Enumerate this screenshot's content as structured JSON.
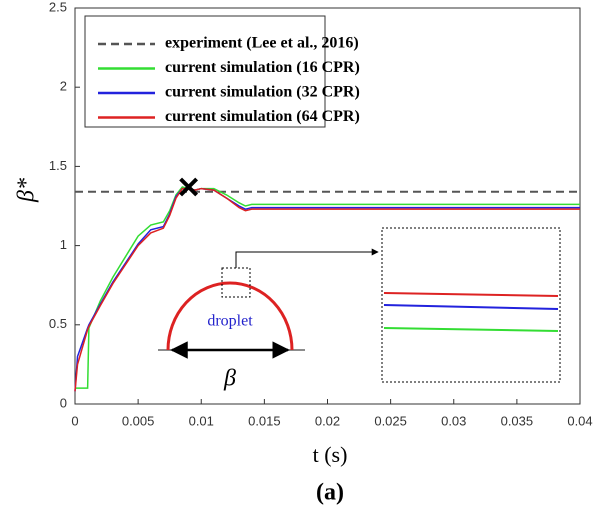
{
  "chart_data": {
    "type": "line",
    "xlabel": "t (s)",
    "ylabel": "β*",
    "caption": "(a)",
    "x": [
      0,
      0.0002,
      0.001,
      0.0011,
      0.002,
      0.003,
      0.004,
      0.005,
      0.006,
      0.007,
      0.0075,
      0.008,
      0.0085,
      0.009,
      0.0095,
      0.01,
      0.011,
      0.012,
      0.013,
      0.0135,
      0.014,
      0.02,
      0.03,
      0.04
    ],
    "series": [
      {
        "name": "experiment (Lee et al., 2016)",
        "color": "#555555",
        "dashed": true,
        "x": [
          0,
          0.04
        ],
        "values": [
          1.34,
          1.34
        ]
      },
      {
        "name": "current simulation (16 CPR)",
        "color": "#33dd33",
        "values": [
          0.1,
          0.1,
          0.1,
          0.48,
          0.65,
          0.8,
          0.93,
          1.06,
          1.13,
          1.15,
          1.22,
          1.32,
          1.37,
          1.36,
          1.35,
          1.36,
          1.36,
          1.32,
          1.27,
          1.25,
          1.26,
          1.26,
          1.26,
          1.26
        ]
      },
      {
        "name": "current simulation (32 CPR)",
        "color": "#2222dd",
        "values": [
          0.08,
          0.3,
          0.48,
          0.5,
          0.63,
          0.77,
          0.89,
          1.01,
          1.1,
          1.12,
          1.2,
          1.31,
          1.36,
          1.36,
          1.35,
          1.36,
          1.35,
          1.3,
          1.25,
          1.23,
          1.24,
          1.24,
          1.24,
          1.24
        ]
      },
      {
        "name": "current simulation (64 CPR)",
        "color": "#dd2222",
        "values": [
          0.08,
          0.25,
          0.47,
          0.49,
          0.62,
          0.76,
          0.88,
          1.0,
          1.08,
          1.11,
          1.19,
          1.3,
          1.36,
          1.36,
          1.35,
          1.36,
          1.35,
          1.3,
          1.24,
          1.22,
          1.23,
          1.23,
          1.23,
          1.23
        ]
      }
    ],
    "marker": {
      "x": 0.009,
      "y": 1.37
    },
    "xlim": [
      0,
      0.04
    ],
    "xticks": [
      0,
      0.005,
      0.01,
      0.015,
      0.02,
      0.025,
      0.03,
      0.035,
      0.04
    ],
    "ylim": [
      0,
      2.5
    ],
    "yticks": [
      0,
      0.5,
      1,
      1.5,
      2,
      2.5
    ],
    "inset": {
      "droplet": "droplet",
      "width": "β"
    }
  }
}
